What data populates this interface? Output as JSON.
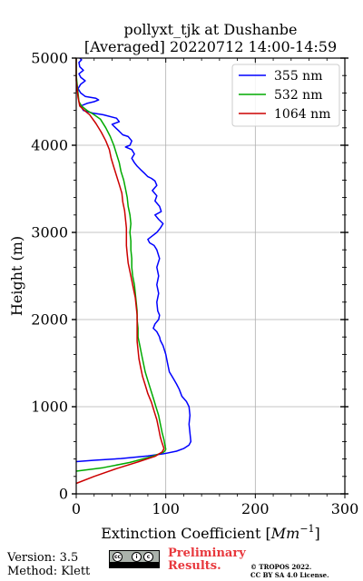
{
  "chart_data": {
    "type": "line",
    "title_line1": "pollyxt_tjk at Dushanbe",
    "title_line2": "[Averaged] 20220712 14:00-14:59",
    "xlabel": "Extinction Coefficient [",
    "xlabel_unit": "Mm",
    "xlabel_sup": "−1",
    "xlabel_end": "]",
    "ylabel": "Height (m)",
    "xlim": [
      0,
      300
    ],
    "ylim": [
      0,
      5000
    ],
    "xticks": [
      0,
      100,
      200,
      300
    ],
    "yticks": [
      0,
      1000,
      2000,
      3000,
      4000,
      5000
    ],
    "grid": true,
    "legend_position": "top-right",
    "series": [
      {
        "name": "355 nm",
        "color": "#0000ff",
        "points": [
          [
            0,
            370
          ],
          [
            20,
            385
          ],
          [
            50,
            405
          ],
          [
            80,
            435
          ],
          [
            98,
            460
          ],
          [
            112,
            490
          ],
          [
            120,
            520
          ],
          [
            126,
            560
          ],
          [
            128,
            600
          ],
          [
            127,
            700
          ],
          [
            126,
            800
          ],
          [
            127,
            900
          ],
          [
            126,
            1000
          ],
          [
            123,
            1060
          ],
          [
            118,
            1120
          ],
          [
            115,
            1200
          ],
          [
            112,
            1260
          ],
          [
            108,
            1330
          ],
          [
            104,
            1400
          ],
          [
            102,
            1500
          ],
          [
            100,
            1600
          ],
          [
            97,
            1700
          ],
          [
            94,
            1760
          ],
          [
            93,
            1800
          ],
          [
            90,
            1860
          ],
          [
            86,
            1900
          ],
          [
            88,
            1950
          ],
          [
            92,
            2000
          ],
          [
            93,
            2050
          ],
          [
            91,
            2100
          ],
          [
            90,
            2200
          ],
          [
            92,
            2300
          ],
          [
            90,
            2400
          ],
          [
            92,
            2500
          ],
          [
            90,
            2600
          ],
          [
            93,
            2700
          ],
          [
            90,
            2800
          ],
          [
            87,
            2850
          ],
          [
            82,
            2880
          ],
          [
            80,
            2920
          ],
          [
            85,
            2960
          ],
          [
            90,
            3000
          ],
          [
            94,
            3050
          ],
          [
            97,
            3100
          ],
          [
            92,
            3150
          ],
          [
            88,
            3200
          ],
          [
            95,
            3240
          ],
          [
            93,
            3300
          ],
          [
            88,
            3360
          ],
          [
            90,
            3420
          ],
          [
            85,
            3480
          ],
          [
            90,
            3540
          ],
          [
            88,
            3590
          ],
          [
            84,
            3620
          ],
          [
            80,
            3640
          ],
          [
            76,
            3680
          ],
          [
            72,
            3720
          ],
          [
            68,
            3760
          ],
          [
            65,
            3800
          ],
          [
            62,
            3850
          ],
          [
            65,
            3900
          ],
          [
            62,
            3950
          ],
          [
            55,
            3980
          ],
          [
            60,
            4000
          ],
          [
            62,
            4050
          ],
          [
            58,
            4100
          ],
          [
            52,
            4120
          ],
          [
            48,
            4160
          ],
          [
            44,
            4200
          ],
          [
            40,
            4240
          ],
          [
            48,
            4270
          ],
          [
            45,
            4310
          ],
          [
            30,
            4350
          ],
          [
            18,
            4370
          ],
          [
            8,
            4400
          ],
          [
            5,
            4450
          ],
          [
            12,
            4480
          ],
          [
            20,
            4500
          ],
          [
            25,
            4520
          ],
          [
            22,
            4540
          ],
          [
            10,
            4560
          ],
          [
            5,
            4600
          ],
          [
            2,
            4650
          ],
          [
            5,
            4700
          ],
          [
            10,
            4740
          ],
          [
            5,
            4780
          ],
          [
            3,
            4820
          ],
          [
            8,
            4860
          ],
          [
            4,
            4900
          ],
          [
            3,
            4950
          ],
          [
            6,
            4980
          ],
          [
            4,
            5000
          ]
        ]
      },
      {
        "name": "532 nm",
        "color": "#00aa00",
        "points": [
          [
            0,
            260
          ],
          [
            30,
            300
          ],
          [
            60,
            360
          ],
          [
            85,
            430
          ],
          [
            98,
            480
          ],
          [
            100,
            510
          ],
          [
            99,
            560
          ],
          [
            98,
            620
          ],
          [
            96,
            700
          ],
          [
            94,
            800
          ],
          [
            92,
            900
          ],
          [
            89,
            1000
          ],
          [
            86,
            1100
          ],
          [
            83,
            1200
          ],
          [
            80,
            1300
          ],
          [
            77,
            1400
          ],
          [
            75,
            1500
          ],
          [
            73,
            1600
          ],
          [
            71,
            1700
          ],
          [
            69,
            1800
          ],
          [
            69,
            1900
          ],
          [
            68,
            2000
          ],
          [
            68,
            2100
          ],
          [
            67,
            2200
          ],
          [
            66,
            2300
          ],
          [
            65,
            2400
          ],
          [
            63,
            2500
          ],
          [
            62,
            2600
          ],
          [
            62,
            2700
          ],
          [
            61,
            2800
          ],
          [
            61,
            2900
          ],
          [
            60,
            3000
          ],
          [
            61,
            3100
          ],
          [
            60,
            3200
          ],
          [
            58,
            3300
          ],
          [
            57,
            3400
          ],
          [
            55,
            3500
          ],
          [
            53,
            3600
          ],
          [
            50,
            3700
          ],
          [
            48,
            3800
          ],
          [
            45,
            3900
          ],
          [
            42,
            4000
          ],
          [
            38,
            4100
          ],
          [
            33,
            4200
          ],
          [
            27,
            4300
          ],
          [
            20,
            4350
          ],
          [
            12,
            4400
          ],
          [
            6,
            4450
          ],
          [
            3,
            4500
          ],
          [
            2,
            4600
          ],
          [
            1,
            4700
          ],
          [
            0,
            4800
          ],
          [
            0,
            4900
          ],
          [
            0,
            5000
          ]
        ]
      },
      {
        "name": "1064 nm",
        "color": "#cc0000",
        "points": [
          [
            0,
            120
          ],
          [
            20,
            200
          ],
          [
            45,
            290
          ],
          [
            70,
            370
          ],
          [
            88,
            430
          ],
          [
            96,
            480
          ],
          [
            98,
            520
          ],
          [
            96,
            580
          ],
          [
            94,
            650
          ],
          [
            92,
            750
          ],
          [
            90,
            850
          ],
          [
            87,
            950
          ],
          [
            84,
            1050
          ],
          [
            80,
            1150
          ],
          [
            77,
            1250
          ],
          [
            74,
            1350
          ],
          [
            72,
            1450
          ],
          [
            70,
            1550
          ],
          [
            69,
            1650
          ],
          [
            68,
            1750
          ],
          [
            68,
            1850
          ],
          [
            68,
            1950
          ],
          [
            68,
            2050
          ],
          [
            67,
            2150
          ],
          [
            66,
            2250
          ],
          [
            64,
            2350
          ],
          [
            62,
            2450
          ],
          [
            60,
            2550
          ],
          [
            58,
            2650
          ],
          [
            57,
            2750
          ],
          [
            56,
            2850
          ],
          [
            56,
            2950
          ],
          [
            56,
            3050
          ],
          [
            55,
            3150
          ],
          [
            54,
            3250
          ],
          [
            52,
            3350
          ],
          [
            51,
            3450
          ],
          [
            48,
            3550
          ],
          [
            45,
            3650
          ],
          [
            42,
            3750
          ],
          [
            39,
            3850
          ],
          [
            37,
            3950
          ],
          [
            33,
            4050
          ],
          [
            28,
            4150
          ],
          [
            22,
            4250
          ],
          [
            15,
            4350
          ],
          [
            9,
            4400
          ],
          [
            4,
            4450
          ],
          [
            2,
            4550
          ],
          [
            1,
            4650
          ],
          [
            0,
            4750
          ],
          [
            0,
            4850
          ],
          [
            0,
            5000
          ]
        ]
      }
    ]
  },
  "footer": {
    "version": "Version: 3.5",
    "method": "Method: Klett",
    "preliminary_line1": "Preliminary",
    "preliminary_line2": "Results.",
    "copyright_line1": "© TROPOS 2022.",
    "copyright_line2": "CC BY SA 4.0 License.",
    "cc_badge_colors": {
      "background": "#aab2ab",
      "strip": "#000000"
    },
    "preliminary_color": "#e8383d"
  }
}
